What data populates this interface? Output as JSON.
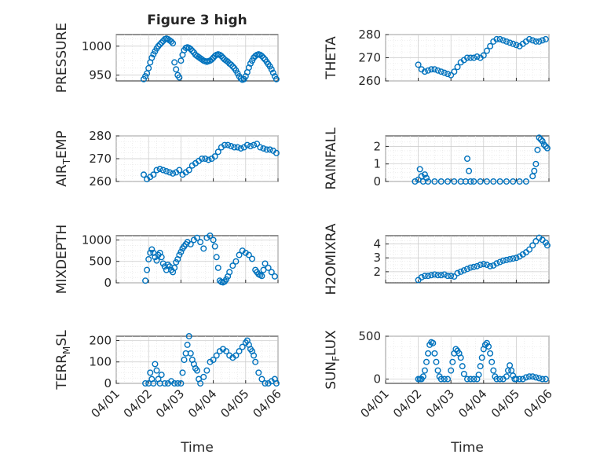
{
  "figure": {
    "title": "Figure 3 high",
    "marker_color": "#0072BD",
    "time_axis": {
      "label": "Time",
      "ticks": [
        "04/01",
        "04/02",
        "04/03",
        "04/04",
        "04/05",
        "04/06"
      ],
      "range_days": [
        0,
        5
      ]
    }
  },
  "chart_data": [
    {
      "type": "scatter",
      "id": "pressure",
      "ylabel": "PRESSURE",
      "ylim": [
        940,
        1020
      ],
      "yticks": [
        950,
        1000
      ],
      "grid": true,
      "x": [
        0.85,
        0.9,
        0.95,
        1.0,
        1.05,
        1.1,
        1.15,
        1.2,
        1.25,
        1.3,
        1.35,
        1.4,
        1.45,
        1.5,
        1.55,
        1.6,
        1.65,
        1.7,
        1.75,
        1.8,
        1.85,
        1.9,
        1.95,
        2.0,
        2.05,
        2.1,
        2.15,
        2.2,
        2.25,
        2.3,
        2.35,
        2.4,
        2.45,
        2.5,
        2.55,
        2.6,
        2.65,
        2.7,
        2.75,
        2.8,
        2.85,
        2.9,
        2.95,
        3.0,
        3.05,
        3.1,
        3.15,
        3.2,
        3.25,
        3.3,
        3.35,
        3.4,
        3.45,
        3.5,
        3.55,
        3.6,
        3.65,
        3.7,
        3.75,
        3.8,
        3.85,
        3.9,
        3.95,
        4.0,
        4.05,
        4.1,
        4.15,
        4.2,
        4.25,
        4.3,
        4.35,
        4.4,
        4.45,
        4.5,
        4.55,
        4.6,
        4.65,
        4.7,
        4.75,
        4.8,
        4.85,
        4.9,
        4.95
      ],
      "values": [
        943,
        948,
        953,
        962,
        972,
        980,
        986,
        991,
        996,
        1000,
        1003,
        1006,
        1009,
        1012,
        1013,
        1012,
        1010,
        1008,
        1005,
        972,
        960,
        950,
        946,
        975,
        985,
        993,
        997,
        998,
        997,
        995,
        992,
        989,
        985,
        983,
        981,
        979,
        977,
        975,
        974,
        973,
        974,
        975,
        977,
        980,
        983,
        985,
        986,
        985,
        983,
        980,
        977,
        975,
        973,
        970,
        968,
        965,
        962,
        958,
        953,
        948,
        944,
        942,
        943,
        948,
        955,
        963,
        970,
        975,
        980,
        983,
        985,
        986,
        985,
        983,
        980,
        977,
        973,
        969,
        965,
        960,
        954,
        948,
        943
      ]
    },
    {
      "type": "scatter",
      "id": "theta",
      "ylabel": "THETA",
      "ylim": [
        260,
        280
      ],
      "yticks": [
        260,
        270,
        280
      ],
      "grid": true,
      "x": [
        1.0,
        1.1,
        1.2,
        1.3,
        1.4,
        1.5,
        1.6,
        1.7,
        1.8,
        1.9,
        2.0,
        2.1,
        2.2,
        2.3,
        2.4,
        2.5,
        2.6,
        2.7,
        2.8,
        2.9,
        3.0,
        3.1,
        3.2,
        3.3,
        3.4,
        3.5,
        3.6,
        3.7,
        3.8,
        3.9,
        4.0,
        4.1,
        4.2,
        4.3,
        4.4,
        4.5,
        4.6,
        4.7,
        4.8,
        4.9
      ],
      "values": [
        267,
        265,
        264,
        264.5,
        265,
        265,
        264.5,
        264,
        263.5,
        263,
        262.5,
        264,
        266,
        268,
        269,
        270,
        270,
        270,
        270.5,
        270,
        271,
        273,
        275,
        277,
        278,
        278,
        277.5,
        277,
        276.5,
        276,
        275.5,
        275,
        276,
        277,
        278,
        277.5,
        277,
        277,
        277.5,
        278
      ]
    },
    {
      "type": "scatter",
      "id": "airtemp",
      "ylabel": "AIR",
      "ylabel_sub": "T",
      "ylabel_suffix": "EMP",
      "ylim": [
        260,
        280
      ],
      "yticks": [
        260,
        270,
        280
      ],
      "grid": true,
      "x": [
        0.85,
        0.95,
        1.05,
        1.15,
        1.25,
        1.35,
        1.45,
        1.55,
        1.65,
        1.75,
        1.85,
        1.95,
        2.05,
        2.15,
        2.25,
        2.35,
        2.45,
        2.55,
        2.65,
        2.75,
        2.85,
        2.95,
        3.05,
        3.15,
        3.25,
        3.35,
        3.45,
        3.55,
        3.65,
        3.75,
        3.85,
        3.95,
        4.05,
        4.15,
        4.25,
        4.35,
        4.45,
        4.55,
        4.65,
        4.75,
        4.85,
        4.95
      ],
      "values": [
        263,
        261,
        262,
        263,
        265,
        265.5,
        265,
        264.5,
        264,
        263.5,
        264,
        265,
        263,
        264,
        265,
        267,
        268,
        269,
        270,
        270,
        269.5,
        270,
        271,
        273,
        275,
        276,
        276,
        275.5,
        275,
        275,
        274.5,
        275,
        276,
        275.5,
        276,
        276.5,
        275,
        274.5,
        274,
        274,
        273.5,
        272.5
      ]
    },
    {
      "type": "scatter",
      "id": "rainfall",
      "ylabel": "RAINFALL",
      "ylim": [
        0,
        2.6
      ],
      "yticks": [
        0,
        1,
        2
      ],
      "grid": true,
      "x": [
        0.9,
        1.0,
        1.05,
        1.1,
        1.15,
        1.2,
        1.25,
        1.3,
        1.5,
        1.7,
        1.9,
        2.1,
        2.3,
        2.45,
        2.5,
        2.55,
        2.6,
        2.7,
        2.9,
        3.1,
        3.3,
        3.5,
        3.7,
        3.9,
        4.1,
        4.3,
        4.5,
        4.55,
        4.6,
        4.65,
        4.7,
        4.75,
        4.8,
        4.85,
        4.9,
        4.95
      ],
      "values": [
        0,
        0.1,
        0.7,
        0.3,
        0,
        0.4,
        0.2,
        0,
        0,
        0,
        0,
        0,
        0,
        0,
        1.3,
        0.6,
        0,
        0,
        0,
        0,
        0,
        0,
        0,
        0,
        0,
        0,
        0.3,
        0.6,
        1.0,
        1.8,
        2.5,
        2.4,
        2.3,
        2.1,
        2.0,
        1.9
      ]
    },
    {
      "type": "scatter",
      "id": "mixdepth",
      "ylabel": "MIXDEPTH",
      "ylim": [
        0,
        1100
      ],
      "yticks": [
        0,
        500,
        1000
      ],
      "grid": true,
      "x": [
        0.9,
        0.95,
        1.0,
        1.05,
        1.1,
        1.15,
        1.2,
        1.25,
        1.3,
        1.35,
        1.4,
        1.45,
        1.5,
        1.55,
        1.6,
        1.65,
        1.7,
        1.75,
        1.8,
        1.85,
        1.9,
        1.95,
        2.0,
        2.05,
        2.1,
        2.15,
        2.2,
        2.3,
        2.4,
        2.5,
        2.6,
        2.7,
        2.8,
        2.9,
        3.0,
        3.05,
        3.1,
        3.15,
        3.2,
        3.25,
        3.3,
        3.35,
        3.4,
        3.45,
        3.5,
        3.6,
        3.7,
        3.8,
        3.9,
        4.0,
        4.1,
        4.2,
        4.3,
        4.35,
        4.4,
        4.45,
        4.5,
        4.55,
        4.6,
        4.7,
        4.8,
        4.9
      ],
      "values": [
        50,
        300,
        550,
        700,
        780,
        700,
        600,
        520,
        650,
        700,
        600,
        450,
        380,
        300,
        420,
        380,
        300,
        250,
        350,
        480,
        550,
        650,
        720,
        800,
        850,
        900,
        950,
        900,
        1000,
        1050,
        950,
        800,
        1050,
        1100,
        1000,
        850,
        600,
        350,
        50,
        20,
        10,
        30,
        80,
        150,
        250,
        400,
        500,
        650,
        750,
        700,
        650,
        560,
        300,
        250,
        200,
        180,
        160,
        300,
        450,
        350,
        250,
        150
      ]
    },
    {
      "type": "scatter",
      "id": "h2omixra",
      "ylabel": "H2OMIXRA",
      "ylim": [
        1.2,
        4.6
      ],
      "yticks": [
        2,
        3,
        4
      ],
      "grid": true,
      "x": [
        1.0,
        1.1,
        1.2,
        1.3,
        1.4,
        1.5,
        1.6,
        1.7,
        1.8,
        1.9,
        2.0,
        2.1,
        2.2,
        2.3,
        2.4,
        2.5,
        2.6,
        2.7,
        2.8,
        2.9,
        3.0,
        3.1,
        3.2,
        3.3,
        3.4,
        3.5,
        3.6,
        3.7,
        3.8,
        3.9,
        4.0,
        4.1,
        4.2,
        4.3,
        4.4,
        4.5,
        4.6,
        4.7,
        4.8,
        4.9,
        4.95
      ],
      "values": [
        1.4,
        1.6,
        1.7,
        1.7,
        1.75,
        1.8,
        1.75,
        1.75,
        1.8,
        1.7,
        1.7,
        1.65,
        1.9,
        2.0,
        2.1,
        2.2,
        2.3,
        2.35,
        2.4,
        2.5,
        2.55,
        2.5,
        2.4,
        2.45,
        2.6,
        2.7,
        2.8,
        2.85,
        2.9,
        2.95,
        3.0,
        3.1,
        3.25,
        3.4,
        3.6,
        3.9,
        4.2,
        4.45,
        4.3,
        4.1,
        3.9
      ]
    },
    {
      "type": "scatter",
      "id": "terrmsl",
      "ylabel": "TERR",
      "ylabel_sub": "M",
      "ylabel_suffix": "SL",
      "ylim": [
        0,
        220
      ],
      "yticks": [
        0,
        100,
        200
      ],
      "grid": true,
      "x": [
        0.9,
        1.0,
        1.05,
        1.1,
        1.15,
        1.2,
        1.25,
        1.3,
        1.35,
        1.4,
        1.5,
        1.6,
        1.7,
        1.8,
        1.9,
        2.0,
        2.05,
        2.1,
        2.15,
        2.2,
        2.25,
        2.3,
        2.35,
        2.4,
        2.45,
        2.5,
        2.55,
        2.6,
        2.7,
        2.8,
        2.9,
        3.0,
        3.1,
        3.2,
        3.3,
        3.4,
        3.5,
        3.6,
        3.7,
        3.8,
        3.9,
        4.0,
        4.05,
        4.1,
        4.15,
        4.2,
        4.25,
        4.3,
        4.4,
        4.5,
        4.6,
        4.7,
        4.8,
        4.9,
        4.95
      ],
      "values": [
        0,
        0,
        50,
        20,
        0,
        90,
        60,
        20,
        0,
        40,
        0,
        0,
        10,
        0,
        0,
        0,
        50,
        110,
        140,
        180,
        220,
        140,
        110,
        90,
        70,
        60,
        20,
        0,
        30,
        60,
        100,
        110,
        130,
        150,
        160,
        150,
        130,
        120,
        130,
        150,
        170,
        190,
        200,
        180,
        160,
        150,
        130,
        100,
        50,
        20,
        0,
        0,
        10,
        20,
        0
      ]
    },
    {
      "type": "scatter",
      "id": "sunflux",
      "ylabel": "SUN",
      "ylabel_sub": "F",
      "ylabel_suffix": "LUX",
      "ylim": [
        -50,
        500
      ],
      "yticks": [
        0,
        500
      ],
      "grid": true,
      "x": [
        1.0,
        1.05,
        1.1,
        1.15,
        1.2,
        1.25,
        1.3,
        1.35,
        1.4,
        1.45,
        1.5,
        1.55,
        1.6,
        1.65,
        1.7,
        1.8,
        1.9,
        2.0,
        2.05,
        2.1,
        2.15,
        2.2,
        2.25,
        2.3,
        2.35,
        2.4,
        2.5,
        2.6,
        2.7,
        2.8,
        2.85,
        2.9,
        2.95,
        3.0,
        3.05,
        3.1,
        3.15,
        3.2,
        3.25,
        3.3,
        3.35,
        3.4,
        3.5,
        3.6,
        3.7,
        3.75,
        3.8,
        3.85,
        3.9,
        3.95,
        4.0,
        4.1,
        4.2,
        4.3,
        4.4,
        4.5,
        4.6,
        4.7,
        4.8,
        4.9
      ],
      "values": [
        0,
        0,
        0,
        30,
        100,
        200,
        300,
        400,
        430,
        420,
        300,
        200,
        100,
        30,
        0,
        0,
        0,
        100,
        200,
        300,
        350,
        330,
        300,
        250,
        150,
        60,
        0,
        0,
        0,
        0,
        50,
        150,
        250,
        350,
        400,
        420,
        380,
        300,
        200,
        100,
        30,
        0,
        0,
        0,
        30,
        100,
        160,
        100,
        40,
        0,
        0,
        0,
        0,
        20,
        30,
        30,
        20,
        10,
        0,
        0
      ]
    }
  ]
}
